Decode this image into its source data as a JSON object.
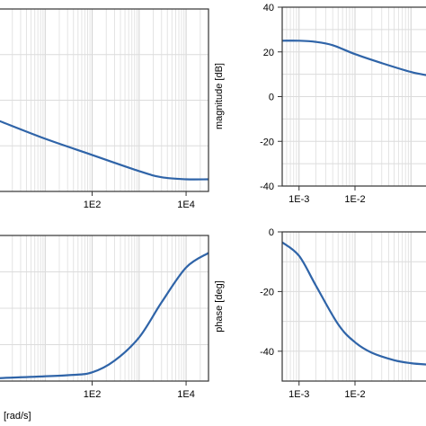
{
  "chart_data": [
    {
      "panel": "top-left",
      "type": "line",
      "x_scale": "log",
      "xlim": [
        1,
        30000
      ],
      "ylim": [
        -45,
        45
      ],
      "x_ticks": [
        {
          "value": 100,
          "label": "1E2"
        },
        {
          "value": 10000,
          "label": "1E4"
        }
      ],
      "y_ticks": [],
      "xlabel": "",
      "ylabel": "",
      "grid": true,
      "series": [
        {
          "color": "#2f64a8",
          "x": [
            1,
            10,
            100,
            1000,
            3000,
            10000,
            30000
          ],
          "y": [
            -10,
            -19,
            -27,
            -35,
            -38,
            -39,
            -39
          ]
        }
      ]
    },
    {
      "panel": "bottom-left",
      "type": "line",
      "x_scale": "log",
      "xlim": [
        1,
        30000
      ],
      "ylim": [
        -45,
        5
      ],
      "x_ticks": [
        {
          "value": 100,
          "label": "1E2"
        },
        {
          "value": 10000,
          "label": "1E4"
        }
      ],
      "y_ticks": [],
      "xlabel": "[rad/s]",
      "ylabel": "",
      "grid": true,
      "series": [
        {
          "color": "#2f64a8",
          "x": [
            1,
            30,
            100,
            300,
            1000,
            3000,
            10000,
            30000
          ],
          "y": [
            -44,
            -43,
            -42,
            -38,
            -30,
            -18,
            -6,
            -1
          ]
        }
      ]
    },
    {
      "panel": "top-right",
      "type": "line",
      "x_scale": "log",
      "xlim": [
        0.0005,
        0.2
      ],
      "ylim": [
        -40,
        40
      ],
      "x_ticks": [
        {
          "value": 0.001,
          "label": "1E-3"
        },
        {
          "value": 0.01,
          "label": "1E-2"
        }
      ],
      "y_ticks": [
        {
          "value": 40,
          "label": "40"
        },
        {
          "value": 20,
          "label": "20"
        },
        {
          "value": 0,
          "label": "0"
        },
        {
          "value": -20,
          "label": "-20"
        },
        {
          "value": -40,
          "label": "-40"
        }
      ],
      "xlabel": "",
      "ylabel": "magnitude [dB]",
      "grid": true,
      "series": [
        {
          "color": "#2f64a8",
          "x": [
            0.0005,
            0.001,
            0.002,
            0.004,
            0.01,
            0.03,
            0.1,
            0.2
          ],
          "y": [
            25,
            25,
            24.5,
            23,
            19,
            15,
            11,
            9.5
          ]
        }
      ]
    },
    {
      "panel": "bottom-right",
      "type": "line",
      "x_scale": "log",
      "xlim": [
        0.0005,
        0.2
      ],
      "ylim": [
        -50,
        0
      ],
      "x_ticks": [
        {
          "value": 0.001,
          "label": "1E-3"
        },
        {
          "value": 0.01,
          "label": "1E-2"
        }
      ],
      "y_ticks": [
        {
          "value": 0,
          "label": "0"
        },
        {
          "value": -20,
          "label": "-20"
        },
        {
          "value": -40,
          "label": "-40"
        }
      ],
      "xlabel": "",
      "ylabel": "phase [deg]",
      "grid": true,
      "series": [
        {
          "color": "#2f64a8",
          "x": [
            0.0005,
            0.001,
            0.002,
            0.005,
            0.01,
            0.02,
            0.05,
            0.1,
            0.2
          ],
          "y": [
            -3.5,
            -8,
            -18,
            -31,
            -37,
            -40.5,
            -43,
            -44,
            -44.5
          ]
        }
      ]
    }
  ]
}
